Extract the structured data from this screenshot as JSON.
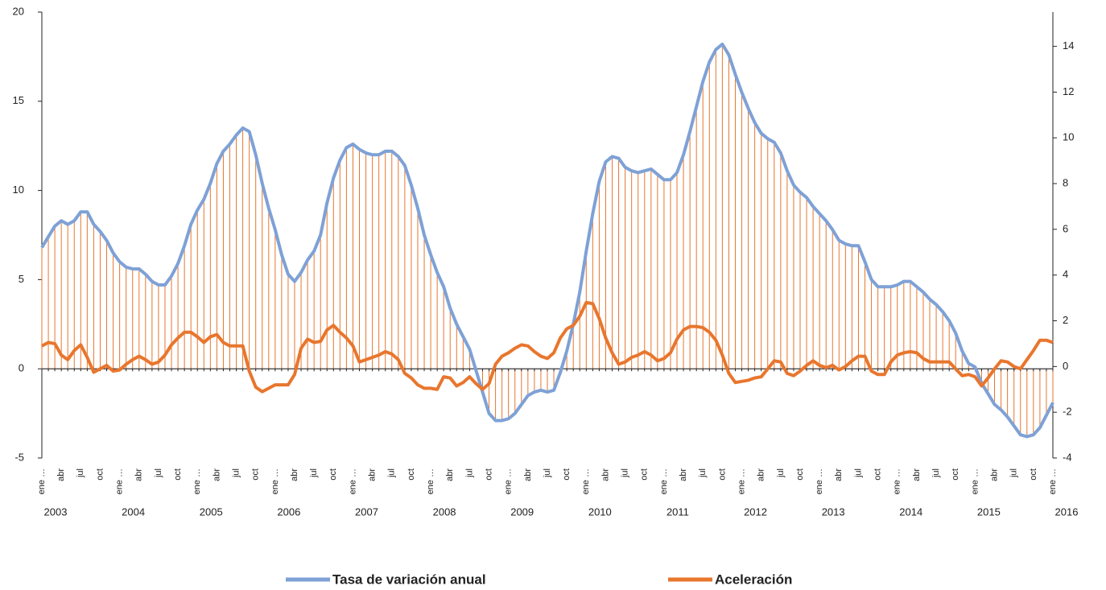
{
  "chart_data": {
    "type": "line",
    "categories": [
      "ene …",
      null,
      null,
      "abr",
      null,
      null,
      "jul",
      null,
      null,
      "oct",
      null,
      null,
      "ene …",
      null,
      null,
      "abr",
      null,
      null,
      "jul",
      null,
      null,
      "oct",
      null,
      null,
      "ene …",
      null,
      null,
      "abr",
      null,
      null,
      "jul",
      null,
      null,
      "oct",
      null,
      null,
      "ene …",
      null,
      null,
      "abr",
      null,
      null,
      "jul",
      null,
      null,
      "oct",
      null,
      null,
      "ene …",
      null,
      null,
      "abr",
      null,
      null,
      "jul",
      null,
      null,
      "oct",
      null,
      null,
      "ene …",
      null,
      null,
      "abr",
      null,
      null,
      "jul",
      null,
      null,
      "oct",
      null,
      null,
      "ene …",
      null,
      null,
      "abr",
      null,
      null,
      "jul",
      null,
      null,
      "oct",
      null,
      null,
      "ene …",
      null,
      null,
      "abr",
      null,
      null,
      "jul",
      null,
      null,
      "oct",
      null,
      null,
      "ene …",
      null,
      null,
      "abr",
      null,
      null,
      "jul",
      null,
      null,
      "oct",
      null,
      null,
      "ene …",
      null,
      null,
      "abr",
      null,
      null,
      "jul",
      null,
      null,
      "oct",
      null,
      null,
      "ene …",
      null,
      null,
      "abr",
      null,
      null,
      "jul",
      null,
      null,
      "oct",
      null,
      null,
      "ene …",
      null,
      null,
      "abr",
      null,
      null,
      "jul",
      null,
      null,
      "oct",
      null,
      null,
      "ene …",
      null,
      null,
      "abr",
      null,
      null,
      "jul",
      null,
      null,
      "oct",
      null,
      null,
      "ene …"
    ],
    "x_groups": [
      "2003",
      "2004",
      "2005",
      "2006",
      "2007",
      "2008",
      "2009",
      "2010",
      "2011",
      "2012",
      "2013",
      "2014",
      "2015",
      "2016"
    ],
    "ylim": [
      -5,
      20
    ],
    "yticks": [
      -5,
      0,
      5,
      10,
      15,
      20
    ],
    "y2lim": [
      -4,
      15.5
    ],
    "y2ticks": [
      -4,
      -2,
      0,
      2,
      4,
      6,
      8,
      10,
      12,
      14
    ],
    "drop_lines_color": "#e8762d",
    "series": [
      {
        "name": "Tasa de variación anual",
        "color": "#7ea1d6",
        "values": [
          6.8,
          7.4,
          8.0,
          8.3,
          8.1,
          8.3,
          8.8,
          8.8,
          8.1,
          7.7,
          7.2,
          6.5,
          6.0,
          5.7,
          5.6,
          5.6,
          5.3,
          4.9,
          4.7,
          4.7,
          5.2,
          5.9,
          6.9,
          8.1,
          8.9,
          9.5,
          10.4,
          11.5,
          12.2,
          12.6,
          13.1,
          13.5,
          13.3,
          12.0,
          10.4,
          9.0,
          7.8,
          6.4,
          5.3,
          4.9,
          5.4,
          6.1,
          6.6,
          7.5,
          9.3,
          10.7,
          11.7,
          12.4,
          12.6,
          12.3,
          12.1,
          12.0,
          12.0,
          12.2,
          12.2,
          11.9,
          11.4,
          10.3,
          9.0,
          7.5,
          6.4,
          5.4,
          4.6,
          3.4,
          2.5,
          1.8,
          1.1,
          -0.1,
          -1.3,
          -2.5,
          -2.9,
          -2.9,
          -2.8,
          -2.5,
          -2.0,
          -1.5,
          -1.3,
          -1.2,
          -1.3,
          -1.2,
          -0.2,
          1.0,
          2.5,
          4.3,
          6.6,
          8.7,
          10.5,
          11.6,
          11.9,
          11.8,
          11.3,
          11.1,
          11.0,
          11.1,
          11.2,
          10.9,
          10.6,
          10.6,
          11.0,
          12.0,
          13.3,
          14.7,
          16.1,
          17.2,
          17.9,
          18.2,
          17.6,
          16.5,
          15.5,
          14.6,
          13.8,
          13.2,
          12.9,
          12.7,
          12.1,
          11.1,
          10.3,
          9.9,
          9.6,
          9.1,
          8.7,
          8.3,
          7.8,
          7.2,
          7.0,
          6.9,
          6.9,
          6.0,
          5.0,
          4.6,
          4.6,
          4.6,
          4.7,
          4.9,
          4.9,
          4.6,
          4.3,
          3.9,
          3.6,
          3.2,
          2.7,
          2.0,
          1.0,
          0.3,
          0.1,
          -0.8,
          -1.4,
          -2.0,
          -2.3,
          -2.7,
          -3.2,
          -3.7,
          -3.8,
          -3.7,
          -3.3,
          -2.6,
          -1.9
        ]
      },
      {
        "name": "Aceleración",
        "color": "#e8762d",
        "axis": "y2",
        "values": [
          0.9,
          1.05,
          1.0,
          0.5,
          0.3,
          0.7,
          0.95,
          0.4,
          -0.25,
          -0.1,
          0.05,
          -0.2,
          -0.15,
          0.1,
          0.3,
          0.45,
          0.3,
          0.1,
          0.2,
          0.5,
          0.95,
          1.25,
          1.5,
          1.5,
          1.3,
          1.05,
          1.3,
          1.4,
          1.05,
          0.9,
          0.9,
          0.9,
          -0.2,
          -0.9,
          -1.1,
          -0.95,
          -0.8,
          -0.8,
          -0.8,
          -0.35,
          0.8,
          1.2,
          1.05,
          1.1,
          1.6,
          1.8,
          1.5,
          1.25,
          0.9,
          0.2,
          0.3,
          0.4,
          0.5,
          0.65,
          0.55,
          0.3,
          -0.3,
          -0.5,
          -0.8,
          -0.95,
          -0.95,
          -1.0,
          -0.45,
          -0.5,
          -0.85,
          -0.7,
          -0.45,
          -0.75,
          -1.0,
          -0.75,
          0.1,
          0.45,
          0.6,
          0.8,
          0.95,
          0.9,
          0.65,
          0.45,
          0.35,
          0.6,
          1.25,
          1.65,
          1.8,
          2.2,
          2.8,
          2.75,
          2.1,
          1.25,
          0.6,
          0.1,
          0.2,
          0.4,
          0.5,
          0.65,
          0.5,
          0.25,
          0.35,
          0.6,
          1.2,
          1.6,
          1.75,
          1.75,
          1.7,
          1.5,
          1.15,
          0.5,
          -0.3,
          -0.7,
          -0.65,
          -0.6,
          -0.5,
          -0.45,
          -0.1,
          0.25,
          0.2,
          -0.3,
          -0.4,
          -0.2,
          0.05,
          0.25,
          0.05,
          -0.05,
          0.05,
          -0.15,
          0.0,
          0.25,
          0.45,
          0.45,
          -0.2,
          -0.35,
          -0.35,
          0.2,
          0.5,
          0.6,
          0.65,
          0.6,
          0.35,
          0.2,
          0.2,
          0.2,
          0.2,
          -0.1,
          -0.4,
          -0.35,
          -0.45,
          -0.85,
          -0.5,
          -0.1,
          0.25,
          0.2,
          0.0,
          -0.1,
          0.3,
          0.7,
          1.15,
          1.15,
          1.05
        ]
      }
    ]
  }
}
